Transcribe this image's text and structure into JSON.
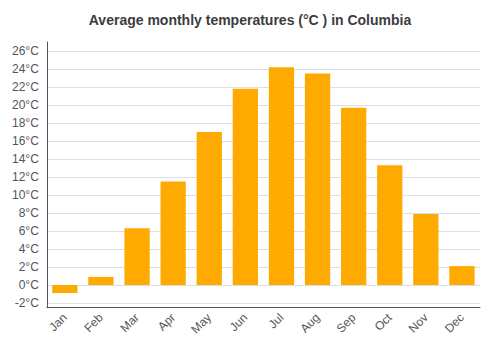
{
  "chart_data": {
    "type": "bar",
    "title": "Average monthly temperatures (°C ) in Columbia",
    "categories": [
      "Jan",
      "Feb",
      "Mar",
      "Apr",
      "May",
      "Jun",
      "Jul",
      "Aug",
      "Sep",
      "Oct",
      "Nov",
      "Dec"
    ],
    "values": [
      -0.9,
      0.9,
      6.3,
      11.5,
      17.0,
      21.8,
      24.2,
      23.5,
      19.7,
      13.3,
      7.9,
      2.1
    ],
    "color": "#FFAA00",
    "ylim": [
      -2.5,
      27
    ],
    "yticks": [
      {
        "value": -2,
        "label": "-2°C"
      },
      {
        "value": 0,
        "label": "0°C"
      },
      {
        "value": 2,
        "label": "2°C"
      },
      {
        "value": 4,
        "label": "4°C"
      },
      {
        "value": 6,
        "label": "6°C"
      },
      {
        "value": 8,
        "label": "8°C"
      },
      {
        "value": 10,
        "label": "10°C"
      },
      {
        "value": 12,
        "label": "12°C"
      },
      {
        "value": 14,
        "label": "14°C"
      },
      {
        "value": 16,
        "label": "16°C"
      },
      {
        "value": 18,
        "label": "18°C"
      },
      {
        "value": 20,
        "label": "20°C"
      },
      {
        "value": 22,
        "label": "22°C"
      },
      {
        "value": 24,
        "label": "24°C"
      },
      {
        "value": 26,
        "label": "26°C"
      }
    ],
    "grid": true
  }
}
